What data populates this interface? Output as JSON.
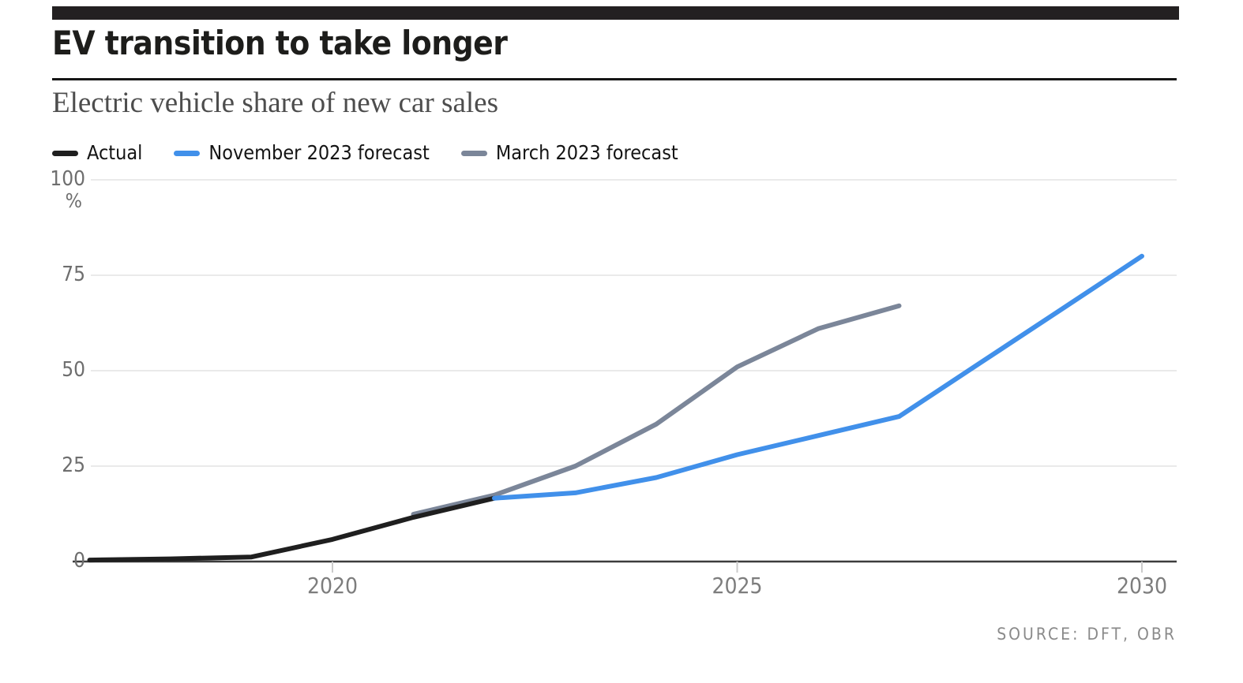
{
  "header": {
    "title": "EV transition to take longer",
    "subtitle": "Electric vehicle share of new car sales"
  },
  "source": "SOURCE: DFT, OBR",
  "colors": {
    "accent_bar": "#232021",
    "divider": "#161616",
    "actual_line": "#1f1f1f",
    "november_forecast_line": "#4190ea",
    "march_forecast_line": "#7b8699",
    "gridline": "#e3e3e3",
    "axis_line": "#3d3d3d",
    "tick_mark": "#cbcbcb",
    "axis_label": "#7d7d7d"
  },
  "chart_data": {
    "type": "line",
    "title": "EV transition to take longer",
    "subtitle": "Electric vehicle share of new car sales",
    "unit_label": "%",
    "ylim": [
      0,
      100
    ],
    "yticks": [
      0,
      25,
      50,
      75,
      100
    ],
    "xlim": [
      2017,
      2030.4
    ],
    "xticks": [
      {
        "value": 2020,
        "label": "2020"
      },
      {
        "value": 2025,
        "label": "2025"
      },
      {
        "value": 2030,
        "label": "2030"
      }
    ],
    "grid": true,
    "legend_position": "top-left",
    "series": [
      {
        "name": "Actual",
        "color": "#1f1f1f",
        "z": 1,
        "points": [
          [
            2017,
            0.4
          ],
          [
            2018,
            0.7
          ],
          [
            2019,
            1.2
          ],
          [
            2020,
            5.8
          ],
          [
            2021,
            11.6
          ],
          [
            2022,
            16.6
          ]
        ]
      },
      {
        "name": "November 2023 forecast",
        "color": "#4190ea",
        "z": 2,
        "points": [
          [
            2022,
            16.6
          ],
          [
            2023,
            18
          ],
          [
            2024,
            22
          ],
          [
            2025,
            28
          ],
          [
            2026,
            33
          ],
          [
            2027,
            38
          ],
          [
            2028,
            52
          ],
          [
            2029,
            66
          ],
          [
            2030,
            80
          ]
        ]
      },
      {
        "name": "March 2023 forecast",
        "color": "#7b8699",
        "z": 0,
        "points": [
          [
            2021,
            12.4
          ],
          [
            2022,
            17.4
          ],
          [
            2023,
            25
          ],
          [
            2024,
            36
          ],
          [
            2025,
            51
          ],
          [
            2026,
            61
          ],
          [
            2027,
            67
          ]
        ]
      }
    ]
  }
}
